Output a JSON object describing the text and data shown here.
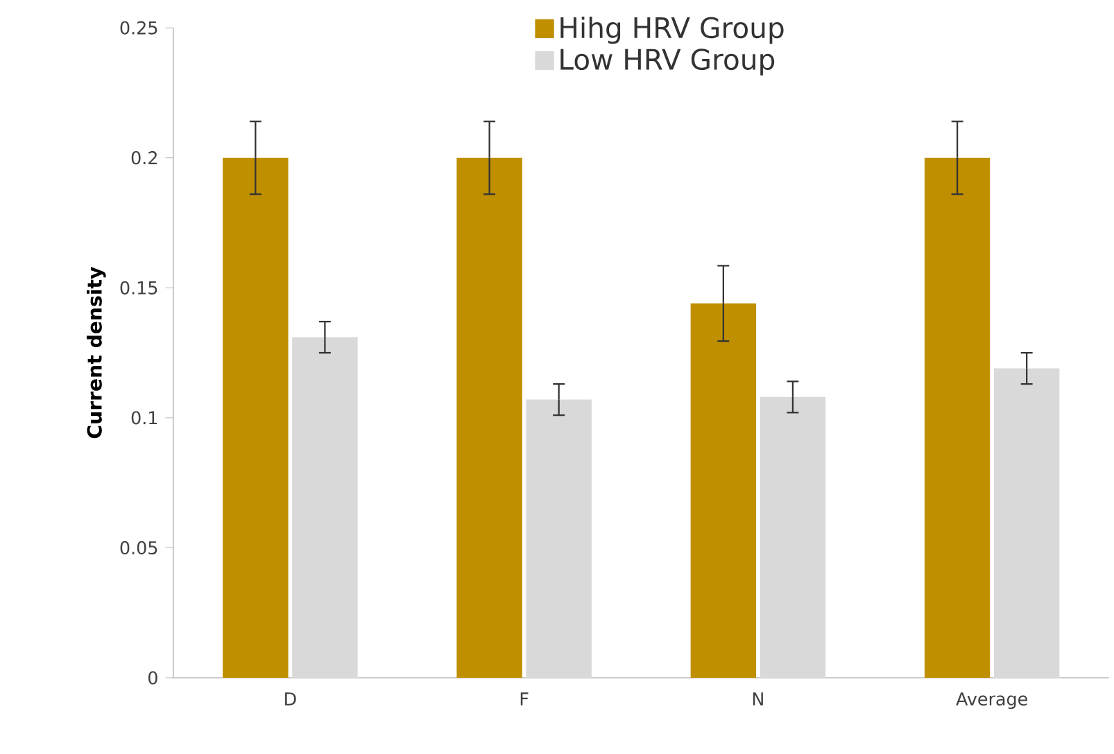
{
  "chart_data": {
    "type": "bar",
    "ylabel": "Current density",
    "categories": [
      "D",
      "F",
      "N",
      "Average"
    ],
    "series": [
      {
        "name": "Hihg HRV Group",
        "color": "#bf8f00",
        "values": [
          0.2,
          0.2,
          0.144,
          0.2
        ],
        "errors": [
          0.014,
          0.014,
          0.0145,
          0.014
        ]
      },
      {
        "name": "Low HRV Group",
        "color": "#d9d9d9",
        "values": [
          0.131,
          0.107,
          0.108,
          0.119
        ],
        "errors": [
          0.006,
          0.006,
          0.006,
          0.006
        ]
      }
    ],
    "ylim": [
      0,
      0.25
    ],
    "yticks": [
      0,
      0.05,
      0.1,
      0.15,
      0.2,
      0.25
    ],
    "grid": false,
    "legend": "top right"
  }
}
